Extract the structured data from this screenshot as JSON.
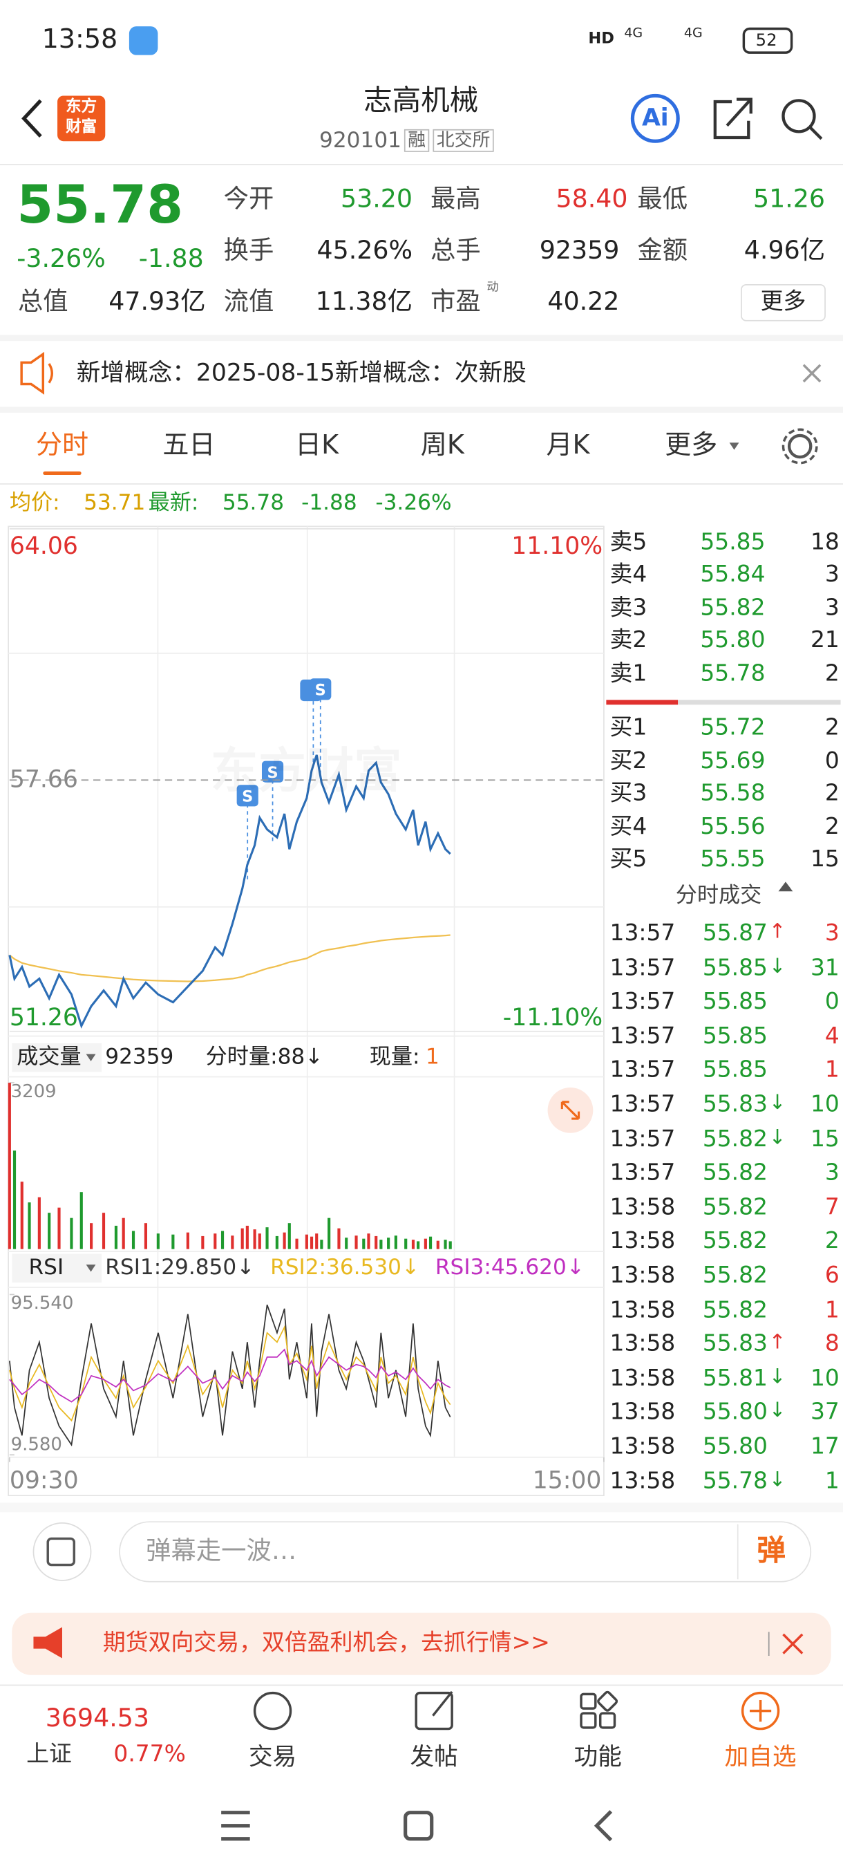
{
  "status_bar": {
    "time": "13:58",
    "network": [
      "HD",
      "4G",
      "4G"
    ],
    "battery": "52"
  },
  "header": {
    "logo": [
      "东方",
      "财富"
    ],
    "title": "志高机械",
    "code": "920101",
    "tags": [
      "融",
      "北交所"
    ],
    "ai": "Ai"
  },
  "quote": {
    "price": "55.78",
    "change_pct": "-3.26%",
    "change": "-1.88",
    "fields": [
      {
        "label": "今开",
        "value": "53.20",
        "tone": "down"
      },
      {
        "label": "最高",
        "value": "58.40",
        "tone": "up"
      },
      {
        "label": "最低",
        "value": "51.26",
        "tone": "down"
      },
      {
        "label": "换手",
        "value": "45.26%"
      },
      {
        "label": "总手",
        "value": "92359"
      },
      {
        "label": "金额",
        "value": "4.96亿"
      },
      {
        "label": "总值",
        "value": "47.93亿"
      },
      {
        "label": "流值",
        "value": "11.38亿"
      },
      {
        "label": "市盈",
        "label_note": "动",
        "value": "40.22"
      }
    ],
    "more": "更多"
  },
  "notice": {
    "text": "新增概念：2025-08-15新增概念：次新股"
  },
  "tabs": {
    "items": [
      "分时",
      "五日",
      "日K",
      "周K",
      "月K",
      "更多"
    ],
    "active": 0
  },
  "summary": {
    "avg_label": "均价:",
    "avg": "53.71",
    "latest_label": "最新:",
    "latest": "55.78",
    "change": "-1.88",
    "change_pct": "-3.26%"
  },
  "intraday": {
    "x": [
      0,
      2,
      5,
      8,
      12,
      16,
      20,
      25,
      29,
      33,
      38,
      43,
      46,
      50,
      55,
      60,
      66,
      72,
      78,
      83,
      86,
      90,
      94,
      96,
      99,
      101,
      104,
      108,
      111,
      113,
      116,
      120,
      122,
      124,
      126,
      129,
      133,
      136,
      140,
      143,
      145,
      148,
      150,
      153,
      156,
      160,
      163,
      165,
      168,
      170,
      173,
      176,
      178
    ],
    "xlim": [
      0,
      240
    ],
    "xticks": [
      {
        "value": 0,
        "label": "09:30"
      },
      {
        "value": 240,
        "label": "15:00"
      }
    ],
    "price": {
      "type": "line",
      "ylim": [
        51.26,
        64.06
      ],
      "yticks": [
        64.06,
        57.66,
        51.26
      ],
      "pct_ticks": [
        "11.10%",
        "-11.10%"
      ],
      "watermark": "东方财富",
      "series": [
        {
          "color": "#2c6db5",
          "values": [
            53.2,
            52.6,
            52.9,
            52.4,
            52.6,
            52.1,
            52.7,
            52.2,
            51.4,
            51.9,
            52.3,
            51.9,
            52.6,
            52.1,
            52.5,
            52.2,
            52.0,
            52.4,
            52.8,
            53.4,
            53.2,
            54.0,
            54.9,
            55.5,
            56.0,
            56.7,
            56.4,
            56.2,
            56.8,
            55.9,
            56.6,
            57.2,
            57.9,
            58.3,
            57.6,
            57.1,
            57.8,
            56.9,
            57.5,
            57.2,
            57.9,
            58.1,
            57.6,
            57.3,
            56.8,
            56.4,
            56.9,
            56.0,
            56.6,
            55.9,
            56.3,
            55.9,
            55.78
          ]
        },
        {
          "color": "#f0c050",
          "values": [
            53.2,
            53.1,
            53.0,
            52.95,
            52.9,
            52.85,
            52.8,
            52.75,
            52.7,
            52.68,
            52.65,
            52.62,
            52.6,
            52.58,
            52.56,
            52.55,
            52.54,
            52.53,
            52.54,
            52.56,
            52.58,
            52.6,
            52.65,
            52.7,
            52.75,
            52.8,
            52.86,
            52.92,
            52.98,
            53.02,
            53.06,
            53.12,
            53.18,
            53.24,
            53.3,
            53.34,
            53.38,
            53.42,
            53.46,
            53.5,
            53.52,
            53.55,
            53.57,
            53.59,
            53.61,
            53.63,
            53.65,
            53.66,
            53.67,
            53.68,
            53.69,
            53.7,
            53.71
          ]
        }
      ]
    },
    "volume": {
      "type": "bar",
      "label": "成交量",
      "total": "92359",
      "minute_label": "分时量:88↓",
      "current_label": "现量:",
      "current": "1",
      "ylim": [
        0,
        3209
      ],
      "yticks": [
        3209
      ],
      "up_color": "#e0302e",
      "down_color": "#1f9a2e",
      "values": [
        3209,
        1900,
        1300,
        900,
        1000,
        700,
        800,
        600,
        1100,
        500,
        700,
        450,
        600,
        350,
        500,
        300,
        280,
        320,
        250,
        300,
        350,
        260,
        400,
        450,
        380,
        300,
        420,
        250,
        320,
        500,
        200,
        280,
        240,
        300,
        180,
        600,
        400,
        220,
        260,
        200,
        300,
        250,
        180,
        220,
        260,
        200,
        180,
        150,
        200,
        240,
        160,
        180,
        150
      ]
    },
    "rsi": {
      "type": "line",
      "label": "RSI",
      "ylim": [
        9.58,
        95.54
      ],
      "yticks": [
        {
          "value": 95.54,
          "label": "95.540"
        },
        {
          "value": 9.58,
          "label": "9.580"
        }
      ],
      "series": [
        {
          "name": "RSI1:29.850↓",
          "color": "#333333",
          "values": [
            60,
            35,
            20,
            55,
            70,
            40,
            25,
            15,
            50,
            80,
            45,
            30,
            60,
            20,
            50,
            75,
            40,
            85,
            30,
            55,
            20,
            65,
            45,
            70,
            35,
            60,
            90,
            75,
            88,
            50,
            70,
            40,
            80,
            30,
            65,
            85,
            55,
            45,
            70,
            60,
            50,
            35,
            75,
            40,
            55,
            30,
            80,
            45,
            25,
            20,
            60,
            35,
            29.85
          ]
        },
        {
          "name": "RSI2:36.530↓",
          "color": "#e8b820",
          "values": [
            55,
            45,
            35,
            48,
            58,
            46,
            35,
            28,
            42,
            62,
            50,
            40,
            52,
            35,
            46,
            60,
            48,
            68,
            42,
            52,
            35,
            55,
            48,
            60,
            45,
            55,
            75,
            70,
            78,
            58,
            64,
            50,
            68,
            45,
            58,
            70,
            58,
            50,
            62,
            58,
            52,
            44,
            62,
            48,
            52,
            42,
            62,
            50,
            38,
            32,
            48,
            40,
            36.53
          ]
        },
        {
          "name": "RSI3:45.620↓",
          "color": "#c030c0",
          "values": [
            50,
            47,
            42,
            45,
            50,
            47,
            42,
            38,
            42,
            52,
            50,
            46,
            50,
            44,
            47,
            53,
            49,
            57,
            48,
            51,
            45,
            52,
            49,
            54,
            49,
            52,
            62,
            62,
            66,
            58,
            60,
            55,
            60,
            52,
            56,
            62,
            58,
            55,
            58,
            57,
            55,
            51,
            57,
            52,
            54,
            50,
            56,
            52,
            48,
            45,
            50,
            47,
            45.62
          ]
        }
      ]
    }
  },
  "order_book": {
    "asks": [
      {
        "label": "卖5",
        "price": "55.85",
        "volume": "18"
      },
      {
        "label": "卖4",
        "price": "55.84",
        "volume": "3"
      },
      {
        "label": "卖3",
        "price": "55.82",
        "volume": "3"
      },
      {
        "label": "卖2",
        "price": "55.80",
        "volume": "21"
      },
      {
        "label": "卖1",
        "price": "55.78",
        "volume": "2"
      }
    ],
    "bids": [
      {
        "label": "买1",
        "price": "55.72",
        "volume": "2"
      },
      {
        "label": "买2",
        "price": "55.69",
        "volume": "0"
      },
      {
        "label": "买3",
        "price": "55.58",
        "volume": "2"
      },
      {
        "label": "买4",
        "price": "55.56",
        "volume": "2"
      },
      {
        "label": "买5",
        "price": "55.55",
        "volume": "15"
      }
    ]
  },
  "trades": {
    "title": "分时成交",
    "rows": [
      {
        "time": "13:57",
        "price": "55.87",
        "arrow": "↑",
        "volume": "3",
        "side": "buy"
      },
      {
        "time": "13:57",
        "price": "55.85",
        "arrow": "↓",
        "volume": "31",
        "side": "sell"
      },
      {
        "time": "13:57",
        "price": "55.85",
        "volume": "0",
        "side": "sell"
      },
      {
        "time": "13:57",
        "price": "55.85",
        "volume": "4",
        "side": "buy"
      },
      {
        "time": "13:57",
        "price": "55.85",
        "volume": "1",
        "side": "buy"
      },
      {
        "time": "13:57",
        "price": "55.83",
        "arrow": "↓",
        "volume": "10",
        "side": "sell"
      },
      {
        "time": "13:57",
        "price": "55.82",
        "arrow": "↓",
        "volume": "15",
        "side": "sell"
      },
      {
        "time": "13:57",
        "price": "55.82",
        "volume": "3",
        "side": "sell"
      },
      {
        "time": "13:58",
        "price": "55.82",
        "volume": "7",
        "side": "buy"
      },
      {
        "time": "13:58",
        "price": "55.82",
        "volume": "2",
        "side": "sell"
      },
      {
        "time": "13:58",
        "price": "55.82",
        "volume": "6",
        "side": "buy"
      },
      {
        "time": "13:58",
        "price": "55.82",
        "volume": "1",
        "side": "buy"
      },
      {
        "time": "13:58",
        "price": "55.83",
        "arrow": "↑",
        "volume": "8",
        "side": "buy"
      },
      {
        "time": "13:58",
        "price": "55.81",
        "arrow": "↓",
        "volume": "10",
        "side": "sell"
      },
      {
        "time": "13:58",
        "price": "55.80",
        "arrow": "↓",
        "volume": "37",
        "side": "sell"
      },
      {
        "time": "13:58",
        "price": "55.80",
        "volume": "17",
        "side": "sell"
      },
      {
        "time": "13:58",
        "price": "55.78",
        "arrow": "↓",
        "volume": "1",
        "side": "sell"
      }
    ]
  },
  "comment": {
    "placeholder": "弹幕走一波…",
    "button": "弹"
  },
  "ad": {
    "text": "期货双向交易，双倍盈利机会，去抓行情>>"
  },
  "bottom_nav": {
    "index_value": "3694.53",
    "index_name": "上证",
    "index_change": "0.77%",
    "items": [
      "交易",
      "发帖",
      "功能",
      "加自选"
    ]
  }
}
